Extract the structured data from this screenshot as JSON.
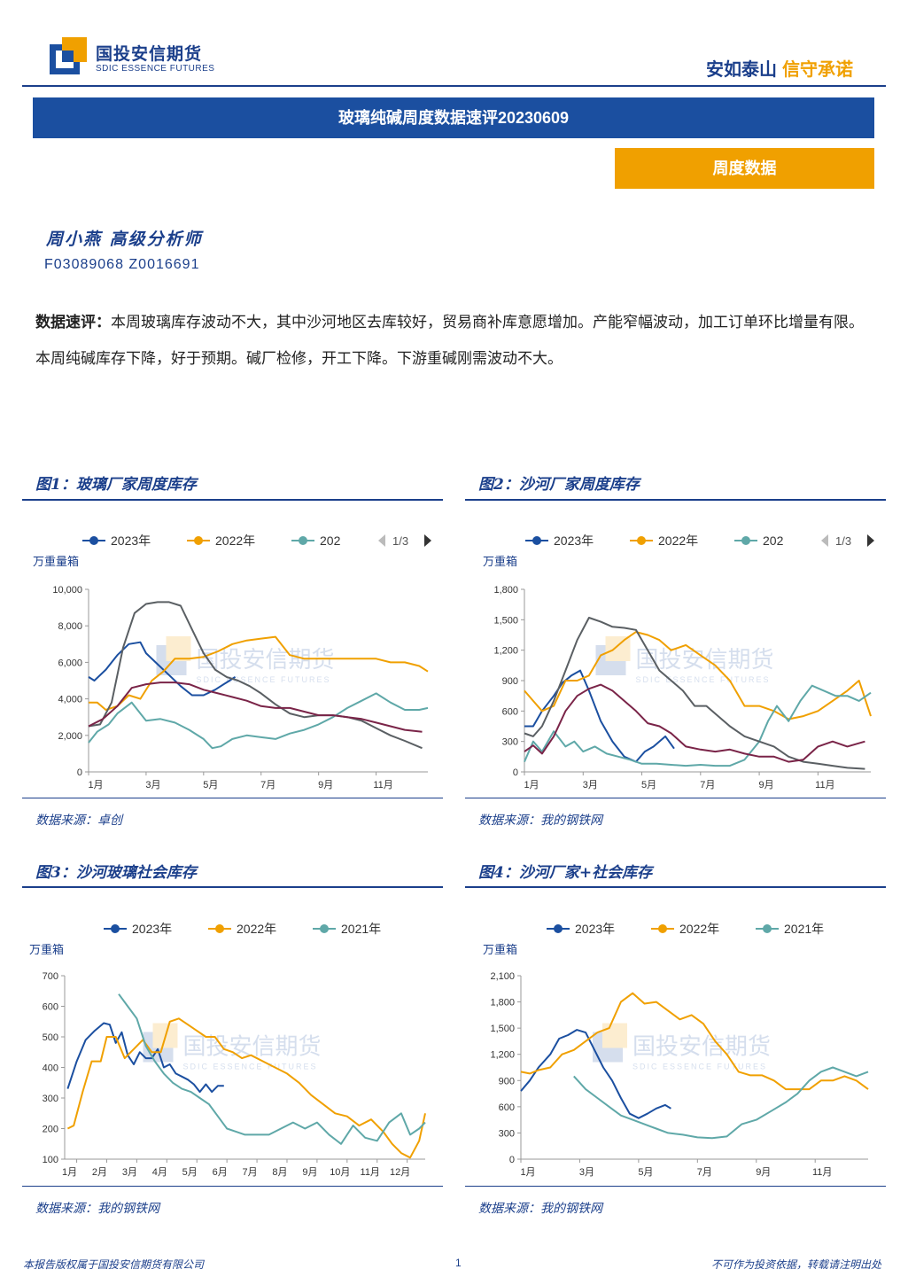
{
  "header": {
    "logo_cn": "国投安信期货",
    "logo_en": "SDIC ESSENCE FUTURES",
    "slogan_a": "安如泰山",
    "slogan_b": "信守承诺",
    "title": "玻璃纯碱周度数据速评20230609",
    "tag": "周度数据"
  },
  "author": {
    "name": "周小燕  高级分析师",
    "ids": "F03089068  Z0016691"
  },
  "summary": {
    "label": "数据速评：",
    "text": "本周玻璃库存波动不大，其中沙河地区去库较好，贸易商补库意愿增加。产能窄幅波动，加工订单环比增量有限。本周纯碱库存下降，好于预期。碱厂检修，开工下降。下游重碱刚需波动不大。"
  },
  "watermark": {
    "cn": "国投安信期货",
    "en": "SDIC ESSENCE FUTURES"
  },
  "colors": {
    "s2023": "#1b4fa0",
    "s2022": "#f0a000",
    "s2021": "#5fa8a8",
    "gray": "#5a5f63",
    "maroon": "#7a2448",
    "brand": "#1b3f8b"
  },
  "figures": [
    {
      "title": "图1：玻璃厂家周度库存",
      "source": "数据来源：卓创"
    },
    {
      "title": "图2：沙河厂家周度库存",
      "source": "数据来源：我的钢铁网"
    },
    {
      "title": "图3：沙河玻璃社会库存",
      "source": "数据来源：我的钢铁网"
    },
    {
      "title": "图4：沙河厂家+社会库存",
      "source": "数据来源：我的钢铁网"
    }
  ],
  "footer": {
    "left": "本报告版权属于国投安信期货有限公司",
    "page": "1",
    "right": "不可作为投资依据，转载请注明出处"
  },
  "chart_data": [
    {
      "type": "line",
      "ylabel": "万重量箱",
      "ylim": [
        0,
        10000
      ],
      "yticks": [
        "0",
        "2,000",
        "4,000",
        "6,000",
        "8,000",
        "10,000"
      ],
      "xticks": [
        "1月",
        "3月",
        "5月",
        "7月",
        "9月",
        "11月"
      ],
      "x_month_range": [
        1,
        12.8
      ],
      "legend": [
        "2023年",
        "2022年",
        "202"
      ],
      "legend_pager": "1/3",
      "series": [
        {
          "name": "2023年",
          "color": "#1b4fa0",
          "x": [
            1,
            1.2,
            1.6,
            2,
            2.4,
            2.8,
            3,
            3.4,
            3.8,
            4.2,
            4.6,
            5,
            5.4,
            5.8,
            6.1
          ],
          "y": [
            5200,
            5000,
            5600,
            6400,
            7000,
            7100,
            6500,
            5900,
            5300,
            4700,
            4200,
            4200,
            4500,
            4900,
            5200
          ]
        },
        {
          "name": "2022年",
          "color": "#f0a000",
          "x": [
            1,
            1.3,
            1.6,
            2,
            2.4,
            2.8,
            3.2,
            3.6,
            4,
            4.5,
            5,
            5.5,
            6,
            6.5,
            7,
            7.5,
            8,
            8.5,
            9,
            9.5,
            10,
            10.5,
            11,
            11.5,
            12,
            12.5,
            12.8
          ],
          "y": [
            3800,
            3800,
            3400,
            3600,
            4200,
            4000,
            5000,
            5500,
            6200,
            6200,
            6300,
            6600,
            7000,
            7200,
            7300,
            7400,
            6400,
            6200,
            6200,
            6200,
            6200,
            6200,
            6200,
            6000,
            6000,
            5800,
            5500
          ]
        },
        {
          "name": "",
          "color": "#5fa8a8",
          "x": [
            1,
            1.3,
            1.7,
            2,
            2.5,
            3,
            3.5,
            4,
            4.5,
            5,
            5.3,
            5.6,
            6,
            6.5,
            7,
            7.5,
            8,
            8.5,
            9,
            9.5,
            10,
            10.5,
            11,
            11.5,
            12,
            12.5,
            12.8
          ],
          "y": [
            1600,
            2200,
            2600,
            3200,
            3800,
            2800,
            2900,
            2700,
            2300,
            1800,
            1300,
            1400,
            1800,
            2000,
            1900,
            1800,
            2100,
            2300,
            2600,
            3000,
            3500,
            3900,
            4300,
            3800,
            3400,
            3400,
            3500
          ]
        },
        {
          "name": "",
          "color": "#5a5f63",
          "x": [
            1,
            1.4,
            1.8,
            2.2,
            2.6,
            3,
            3.4,
            3.8,
            4.2,
            4.6,
            5,
            5.4,
            5.8,
            6.2,
            6.6,
            7,
            7.5,
            8,
            8.5,
            9,
            9.5,
            10,
            10.5,
            11,
            11.5,
            12,
            12.6
          ],
          "y": [
            2500,
            2600,
            3800,
            6800,
            8700,
            9200,
            9300,
            9300,
            9100,
            7800,
            6500,
            5600,
            5200,
            5000,
            4700,
            4300,
            3700,
            3200,
            3000,
            3100,
            3100,
            3000,
            2800,
            2400,
            2000,
            1700,
            1300
          ]
        },
        {
          "name": "",
          "color": "#7a2448",
          "x": [
            1,
            1.5,
            2,
            2.5,
            3,
            3.5,
            4,
            4.5,
            5,
            5.5,
            6,
            6.5,
            7,
            7.5,
            8,
            8.5,
            9,
            9.5,
            10,
            10.5,
            11,
            11.5,
            12,
            12.6
          ],
          "y": [
            2500,
            2900,
            3600,
            4600,
            4800,
            4900,
            4900,
            4800,
            4500,
            4300,
            4100,
            3900,
            3600,
            3500,
            3500,
            3300,
            3100,
            3100,
            3000,
            2900,
            2700,
            2500,
            2300,
            2200
          ]
        }
      ]
    },
    {
      "type": "line",
      "ylabel": "万重箱",
      "ylim": [
        0,
        1800
      ],
      "yticks": [
        "0",
        "300",
        "600",
        "900",
        "1,200",
        "1,500",
        "1,800"
      ],
      "xticks": [
        "1月",
        "3月",
        "5月",
        "7月",
        "9月",
        "11月"
      ],
      "x_month_range": [
        1,
        12.8
      ],
      "legend": [
        "2023年",
        "2022年",
        "202"
      ],
      "legend_pager": "1/3",
      "series": [
        {
          "name": "2023年",
          "color": "#1b4fa0",
          "x": [
            1,
            1.3,
            1.6,
            2,
            2.3,
            2.6,
            2.9,
            3.2,
            3.6,
            4,
            4.4,
            4.8,
            5.1,
            5.4,
            5.8,
            6.1
          ],
          "y": [
            450,
            450,
            600,
            750,
            880,
            950,
            1000,
            800,
            500,
            300,
            150,
            100,
            200,
            250,
            350,
            230
          ]
        },
        {
          "name": "2022年",
          "color": "#f0a000",
          "x": [
            1,
            1.3,
            1.6,
            2,
            2.4,
            2.8,
            3.2,
            3.6,
            4,
            4.4,
            4.8,
            5.2,
            5.6,
            6,
            6.5,
            7,
            7.5,
            8,
            8.5,
            9,
            9.5,
            10,
            10.5,
            11,
            11.5,
            12,
            12.4,
            12.8
          ],
          "y": [
            800,
            700,
            600,
            650,
            900,
            900,
            950,
            1150,
            1200,
            1300,
            1380,
            1350,
            1300,
            1200,
            1250,
            1150,
            1050,
            900,
            650,
            650,
            600,
            520,
            550,
            600,
            700,
            800,
            900,
            550
          ]
        },
        {
          "name": "",
          "color": "#5fa8a8",
          "x": [
            1,
            1.3,
            1.6,
            2,
            2.4,
            2.7,
            3,
            3.4,
            3.8,
            4.2,
            4.6,
            5,
            5.5,
            6,
            6.5,
            7,
            7.5,
            8,
            8.5,
            9,
            9.3,
            9.6,
            10,
            10.4,
            10.8,
            11.2,
            11.6,
            12,
            12.4,
            12.8
          ],
          "y": [
            100,
            300,
            200,
            400,
            250,
            300,
            200,
            250,
            180,
            150,
            120,
            80,
            80,
            70,
            60,
            70,
            60,
            60,
            120,
            300,
            500,
            650,
            500,
            700,
            850,
            800,
            750,
            750,
            700,
            780
          ]
        },
        {
          "name": "",
          "color": "#5a5f63",
          "x": [
            1,
            1.3,
            1.6,
            2,
            2.4,
            2.8,
            3.2,
            3.6,
            4,
            4.4,
            4.8,
            5.2,
            5.6,
            6,
            6.4,
            6.8,
            7.2,
            7.6,
            8,
            8.5,
            9,
            9.5,
            10,
            10.5,
            11,
            11.5,
            12,
            12.6
          ],
          "y": [
            380,
            350,
            450,
            700,
            1000,
            1300,
            1520,
            1480,
            1430,
            1420,
            1400,
            1200,
            1000,
            900,
            800,
            650,
            650,
            550,
            450,
            350,
            300,
            250,
            150,
            100,
            80,
            60,
            40,
            30
          ]
        },
        {
          "name": "",
          "color": "#7a2448",
          "x": [
            1,
            1.3,
            1.6,
            2,
            2.4,
            2.8,
            3.2,
            3.6,
            4,
            4.4,
            4.8,
            5.2,
            5.6,
            6,
            6.5,
            7,
            7.5,
            8,
            8.5,
            9,
            9.5,
            10,
            10.5,
            11,
            11.5,
            12,
            12.6
          ],
          "y": [
            200,
            260,
            180,
            350,
            600,
            750,
            820,
            860,
            800,
            700,
            600,
            480,
            450,
            380,
            250,
            220,
            200,
            220,
            180,
            150,
            150,
            100,
            120,
            250,
            300,
            250,
            300
          ]
        }
      ]
    },
    {
      "type": "line",
      "ylabel": "万重箱",
      "ylim": [
        100,
        700
      ],
      "yticks": [
        "100",
        "200",
        "300",
        "400",
        "500",
        "600",
        "700"
      ],
      "xticks": [
        "1月",
        "2月",
        "3月",
        "4月",
        "5月",
        "6月",
        "7月",
        "8月",
        "9月",
        "10月",
        "11月",
        "12月"
      ],
      "x_month_range": [
        0.6,
        12.6
      ],
      "legend": [
        "2023年",
        "2022年",
        "2021年"
      ],
      "series": [
        {
          "name": "2023年",
          "color": "#1b4fa0",
          "x": [
            0.7,
            1,
            1.3,
            1.6,
            1.9,
            2.1,
            2.3,
            2.5,
            2.7,
            2.9,
            3.1,
            3.3,
            3.5,
            3.7,
            3.9,
            4.1,
            4.3,
            4.5,
            4.7,
            4.9,
            5.1,
            5.3,
            5.5,
            5.7,
            5.9
          ],
          "y": [
            330,
            420,
            490,
            520,
            545,
            540,
            480,
            515,
            440,
            410,
            450,
            430,
            430,
            460,
            400,
            410,
            380,
            370,
            360,
            345,
            320,
            345,
            320,
            340,
            340
          ]
        },
        {
          "name": "2022年",
          "color": "#f0a000",
          "x": [
            0.7,
            0.9,
            1.2,
            1.5,
            1.8,
            2,
            2.3,
            2.6,
            2.9,
            3.2,
            3.5,
            3.8,
            4.1,
            4.4,
            4.7,
            5,
            5.3,
            5.6,
            5.9,
            6.2,
            6.5,
            6.8,
            7.2,
            7.6,
            8,
            8.4,
            8.8,
            9.2,
            9.6,
            10,
            10.4,
            10.8,
            11.2,
            11.5,
            11.8,
            12.1,
            12.4,
            12.6
          ],
          "y": [
            200,
            210,
            320,
            420,
            420,
            500,
            500,
            430,
            460,
            490,
            450,
            450,
            550,
            560,
            540,
            520,
            500,
            500,
            460,
            450,
            430,
            440,
            420,
            400,
            380,
            350,
            310,
            280,
            250,
            240,
            210,
            230,
            190,
            150,
            120,
            105,
            160,
            250
          ]
        },
        {
          "name": "2021年",
          "color": "#5fa8a8",
          "x": [
            2.4,
            2.7,
            3,
            3.3,
            3.6,
            3.9,
            4.2,
            4.5,
            4.8,
            5.1,
            5.4,
            5.7,
            6,
            6.3,
            6.6,
            7,
            7.4,
            7.8,
            8.2,
            8.6,
            9,
            9.4,
            9.8,
            10.2,
            10.6,
            11,
            11.4,
            11.8,
            12.1,
            12.4,
            12.6
          ],
          "y": [
            640,
            600,
            560,
            470,
            420,
            380,
            350,
            330,
            320,
            300,
            280,
            240,
            200,
            190,
            180,
            180,
            180,
            200,
            220,
            200,
            220,
            180,
            150,
            210,
            170,
            160,
            220,
            250,
            180,
            200,
            220
          ]
        }
      ]
    },
    {
      "type": "line",
      "ylabel": "万重箱",
      "ylim": [
        0,
        2100
      ],
      "yticks": [
        "0",
        "300",
        "600",
        "900",
        "1,200",
        "1,500",
        "1,800",
        "2,100"
      ],
      "xticks": [
        "1月",
        "3月",
        "5月",
        "7月",
        "9月",
        "11月"
      ],
      "x_month_range": [
        1,
        12.8
      ],
      "legend": [
        "2023年",
        "2022年",
        "2021年"
      ],
      "series": [
        {
          "name": "2023年",
          "color": "#1b4fa0",
          "x": [
            1,
            1.3,
            1.6,
            2,
            2.3,
            2.6,
            2.9,
            3.2,
            3.5,
            3.8,
            4.1,
            4.4,
            4.7,
            5,
            5.3,
            5.6,
            5.9,
            6.1
          ],
          "y": [
            780,
            900,
            1050,
            1200,
            1380,
            1420,
            1480,
            1450,
            1250,
            1050,
            900,
            700,
            520,
            470,
            520,
            580,
            620,
            580
          ]
        },
        {
          "name": "2022年",
          "color": "#f0a000",
          "x": [
            1,
            1.3,
            1.6,
            2,
            2.4,
            2.8,
            3.2,
            3.6,
            4,
            4.4,
            4.8,
            5.2,
            5.6,
            6,
            6.4,
            6.8,
            7.2,
            7.6,
            8,
            8.4,
            8.8,
            9.2,
            9.6,
            10,
            10.4,
            10.8,
            11.2,
            11.6,
            12,
            12.4,
            12.8
          ],
          "y": [
            1000,
            980,
            1020,
            1050,
            1200,
            1250,
            1350,
            1450,
            1500,
            1800,
            1900,
            1780,
            1800,
            1700,
            1600,
            1650,
            1550,
            1350,
            1200,
            1000,
            960,
            960,
            900,
            800,
            800,
            800,
            900,
            900,
            950,
            900,
            800
          ]
        },
        {
          "name": "2021年",
          "color": "#5fa8a8",
          "x": [
            2.8,
            3.2,
            3.6,
            4,
            4.4,
            4.8,
            5.2,
            5.6,
            6,
            6.5,
            7,
            7.5,
            8,
            8.5,
            9,
            9.5,
            10,
            10.4,
            10.8,
            11.2,
            11.6,
            12,
            12.4,
            12.8
          ],
          "y": [
            950,
            800,
            700,
            600,
            500,
            450,
            400,
            350,
            300,
            280,
            250,
            240,
            260,
            400,
            450,
            550,
            650,
            750,
            900,
            1000,
            1050,
            1000,
            950,
            1000
          ]
        }
      ]
    }
  ]
}
